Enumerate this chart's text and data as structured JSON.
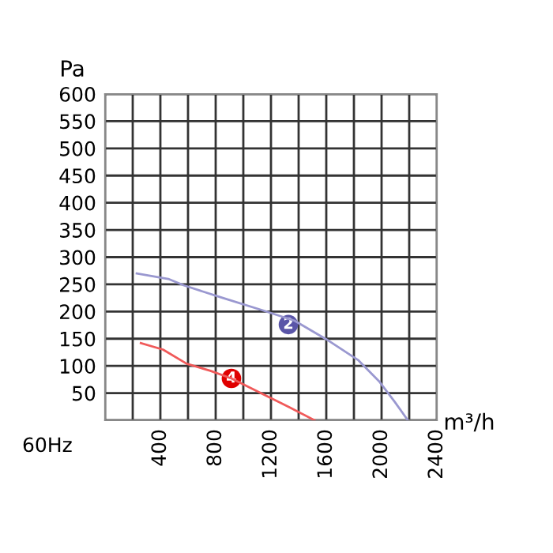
{
  "chart_data": {
    "type": "line",
    "xlabel": "m³/h",
    "ylabel": "Pa",
    "xlim": [
      0,
      2400
    ],
    "ylim": [
      0,
      600
    ],
    "xticks": [
      {
        "value": 0,
        "label": null
      },
      {
        "value": 200,
        "label": null
      },
      400,
      {
        "value": 600,
        "label": null
      },
      800,
      {
        "value": 1000,
        "label": null
      },
      1200,
      {
        "value": 1400,
        "label": null
      },
      1600,
      {
        "value": 1800,
        "label": null
      },
      2000,
      {
        "value": 2200,
        "label": null
      },
      2400
    ],
    "yticks": [
      {
        "value": 0,
        "label": null
      },
      50,
      100,
      150,
      200,
      250,
      300,
      350,
      400,
      450,
      500,
      550,
      600
    ],
    "grid": true,
    "series": [
      {
        "color": "#9a98d0",
        "x": [
          229,
          457,
          571,
          838,
          1143,
          1371,
          1600,
          1829,
          1981,
          2095,
          2190
        ],
        "values": [
          270,
          260,
          248,
          226,
          202,
          183,
          149,
          111,
          72,
          34,
          0
        ]
      },
      {
        "color": "#f05a5a",
        "x": [
          259,
          419,
          590,
          762,
          914,
          1143,
          1333,
          1516
        ],
        "values": [
          142,
          130,
          104,
          91,
          77,
          48,
          24,
          0
        ]
      }
    ],
    "annotations": [
      {
        "text": "2",
        "x": 1326,
        "y": 176
      },
      {
        "text": "4",
        "x": 914,
        "y": 77
      },
      "60Hz"
    ]
  }
}
